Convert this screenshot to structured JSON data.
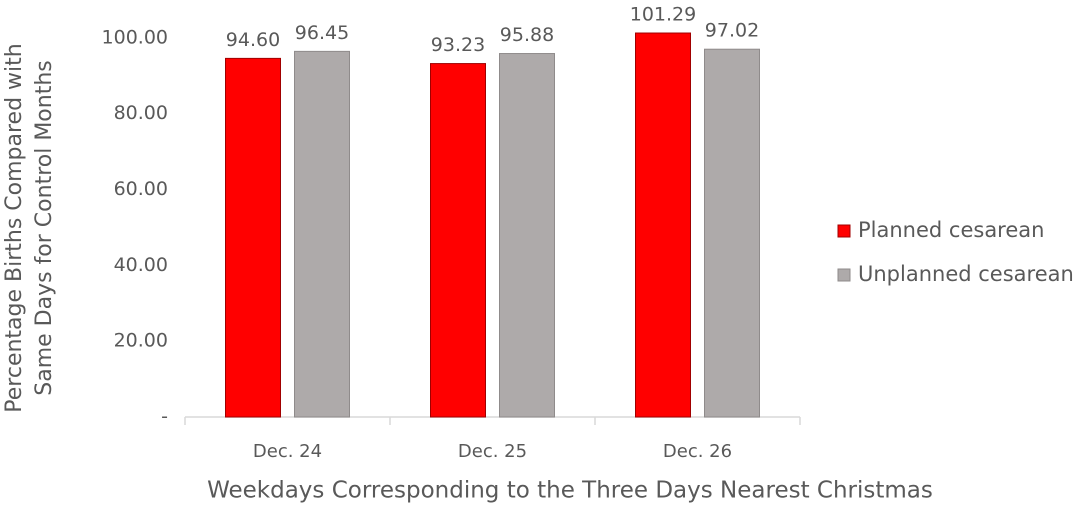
{
  "chart_data": {
    "type": "bar",
    "xlabel": "Weekdays Corresponding to the Three Days Nearest Christmas",
    "ylabel": [
      "Percentage Births Compared with",
      "Same Days for Control Months"
    ],
    "categories": [
      "Dec. 24",
      "Dec. 25",
      "Dec. 26"
    ],
    "series": [
      {
        "name": "Planned cesarean",
        "color": "#ff0000",
        "values": [
          94.6,
          93.23,
          101.29
        ],
        "value_labels": [
          "94.60",
          "93.23",
          "101.29"
        ]
      },
      {
        "name": "Unplanned cesarean",
        "color": "#aeaaaa",
        "values": [
          96.45,
          95.88,
          97.02
        ],
        "value_labels": [
          "96.45",
          "95.88",
          "97.02"
        ]
      }
    ],
    "ylim": [
      0,
      110
    ],
    "yticks": [
      {
        "value": 0,
        "label": "-"
      },
      {
        "value": 20,
        "label": "20.00"
      },
      {
        "value": 40,
        "label": "40.00"
      },
      {
        "value": 60,
        "label": "60.00"
      },
      {
        "value": 80,
        "label": "80.00"
      },
      {
        "value": 100,
        "label": "100.00"
      }
    ],
    "grid": false,
    "legend": "right"
  }
}
